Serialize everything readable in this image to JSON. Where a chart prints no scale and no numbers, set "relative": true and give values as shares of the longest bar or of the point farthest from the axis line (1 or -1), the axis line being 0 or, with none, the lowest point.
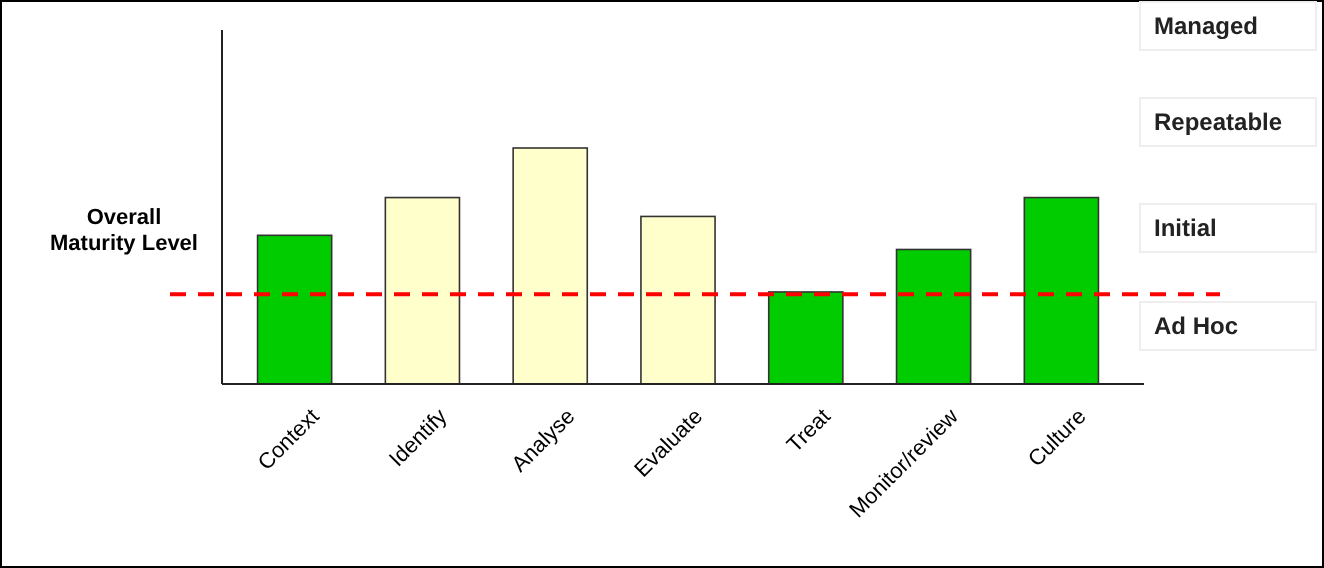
{
  "chart_data": {
    "type": "bar",
    "relative": true,
    "categories": [
      "Context",
      "Identify",
      "Analyse",
      "Evaluate",
      "Treat",
      "Monitor/review",
      "Culture"
    ],
    "values": [
      0.63,
      0.79,
      1,
      0.71,
      0.39,
      0.57,
      0.79
    ],
    "colors": [
      "#00cc00",
      "#ffffcc",
      "#ffffcc",
      "#ffffcc",
      "#00cc00",
      "#00cc00",
      "#00cc00"
    ],
    "ref_lines": [
      {
        "axis": "y",
        "value": 0.38,
        "label": "Overall Maturity Level",
        "color": "#ff0000",
        "line_style": "dashed"
      }
    ],
    "annotations": [
      "Managed",
      "Repeatable",
      "Initial",
      "Ad Hoc"
    ],
    "grid": false
  }
}
